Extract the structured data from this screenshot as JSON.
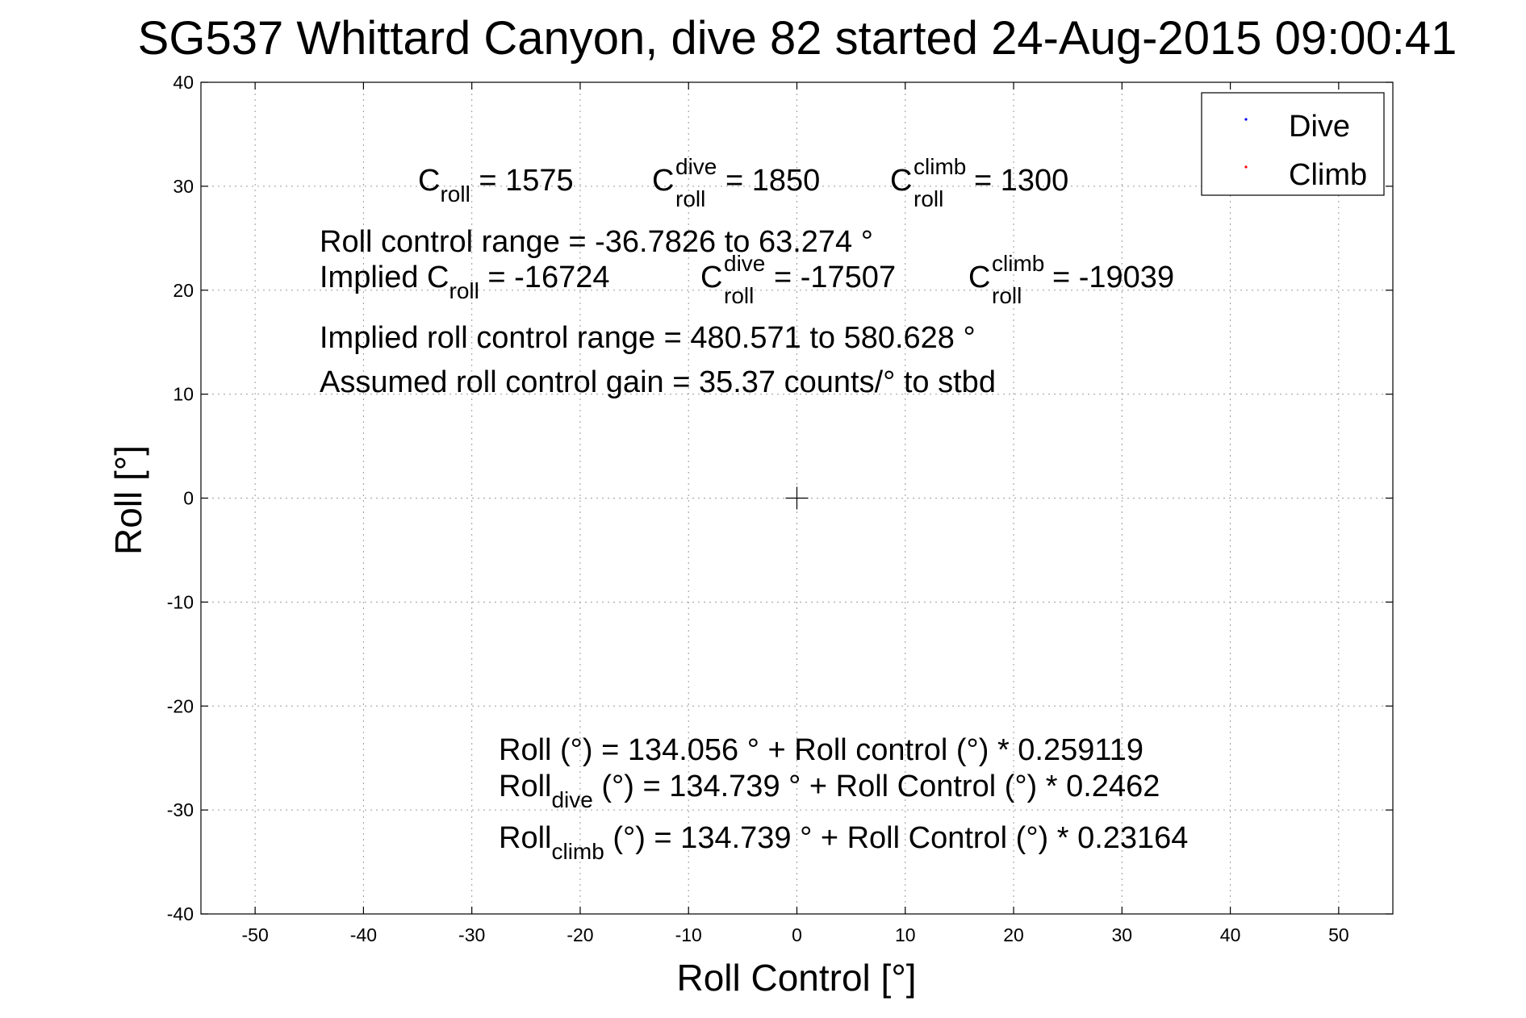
{
  "chart_data": {
    "type": "scatter",
    "title": "SG537 Whittard Canyon, dive 82 started 24-Aug-2015 09:00:41",
    "xlabel": "Roll Control [°]",
    "ylabel": "Roll [°]",
    "xlim": [
      -55,
      55
    ],
    "ylim": [
      -40,
      40
    ],
    "xticks": [
      -50,
      -40,
      -30,
      -20,
      -10,
      0,
      10,
      20,
      30,
      40,
      50
    ],
    "yticks": [
      -40,
      -30,
      -20,
      -10,
      0,
      10,
      20,
      30,
      40
    ],
    "xtick_labels": [
      "-50",
      "-40",
      "-30",
      "-20",
      "-10",
      "0",
      "10",
      "20",
      "30",
      "40",
      "50"
    ],
    "ytick_labels": [
      "-40",
      "-30",
      "-20",
      "-10",
      "0",
      "10",
      "20",
      "30",
      "40"
    ],
    "grid": true,
    "legend_position": "top-right",
    "series": [
      {
        "name": "Dive",
        "color": "#0000ff",
        "marker": "dot",
        "points": []
      },
      {
        "name": "Climb",
        "color": "#ff0000",
        "marker": "dot",
        "points": []
      }
    ],
    "center_marker": {
      "x": 0,
      "y": 0,
      "marker": "plus"
    },
    "annotations": {
      "c_roll": {
        "base": "C",
        "sub": "roll",
        "value": " = 1575"
      },
      "c_roll_dive": {
        "base": "C",
        "sup": "dive",
        "sub": "roll",
        "value": " = 1850"
      },
      "c_roll_climb": {
        "base": "C",
        "sup": "climb",
        "sub": "roll",
        "value": " = 1300"
      },
      "roll_control_range": "Roll control range = -36.7826 to 63.274 °",
      "implied_c_roll": {
        "prefix": "Implied C",
        "sub": "roll",
        "value": " = -16724"
      },
      "implied_c_roll_dive": {
        "base": "C",
        "sup": "dive",
        "sub": "roll",
        "value": " = -17507"
      },
      "implied_c_roll_climb": {
        "base": "C",
        "sup": "climb",
        "sub": "roll",
        "value": " = -19039"
      },
      "implied_roll_control_range": "Implied roll control range = 480.571 to 580.628 °",
      "assumed_gain": "Assumed roll control gain = 35.37 counts/° to stbd",
      "fit_roll": "Roll (°) = 134.056 ° + Roll control (°) * 0.259119",
      "fit_roll_dive": {
        "base": "Roll",
        "sub": "dive",
        "value": " (°) = 134.739 ° + Roll Control (°) * 0.2462"
      },
      "fit_roll_climb": {
        "base": "Roll",
        "sub": "climb",
        "value": " (°) = 134.739 ° + Roll Control (°) * 0.23164"
      }
    }
  }
}
